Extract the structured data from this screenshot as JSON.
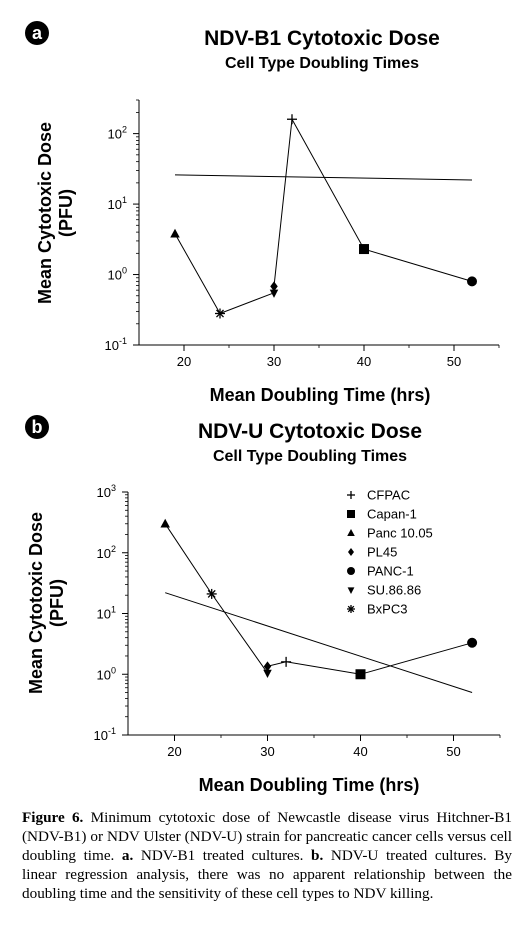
{
  "chart_data": [
    {
      "panel_label": "a",
      "type": "scatter",
      "title": "NDV-B1 Cytotoxic Dose",
      "subtitle": "Cell Type Doubling Times",
      "xlabel": "Mean Doubling Time (hrs)",
      "ylabel": "Mean Cytotoxic Dose",
      "ylabel_unit": "(PFU)",
      "xlim": [
        15,
        55
      ],
      "x_ticks": [
        20,
        30,
        40,
        50
      ],
      "y_scale": "log",
      "ylim": [
        0.1,
        300
      ],
      "y_ticks": [
        {
          "base": "10",
          "exp": "-1",
          "value": 0.1
        },
        {
          "base": "10",
          "exp": "0",
          "value": 1
        },
        {
          "base": "10",
          "exp": "1",
          "value": 10
        },
        {
          "base": "10",
          "exp": "2",
          "value": 100
        }
      ],
      "points": [
        {
          "marker": "triangle",
          "x": 19,
          "y": 3.8
        },
        {
          "marker": "asterisk",
          "x": 24,
          "y": 0.28
        },
        {
          "marker": "down-triangle",
          "x": 30,
          "y": 0.55
        },
        {
          "marker": "diamond",
          "x": 30,
          "y": 0.68
        },
        {
          "marker": "plus",
          "x": 32,
          "y": 160
        },
        {
          "marker": "square",
          "x": 40,
          "y": 2.3
        },
        {
          "marker": "circle",
          "x": 52,
          "y": 0.8
        }
      ],
      "connect_order": [
        0,
        1,
        2,
        3,
        4,
        5,
        6
      ],
      "regression": [
        [
          19,
          26
        ],
        [
          52,
          22
        ]
      ]
    },
    {
      "panel_label": "b",
      "type": "scatter",
      "title": "NDV-U Cytotoxic Dose",
      "subtitle": "Cell Type Doubling Times",
      "xlabel": "Mean Doubling Time (hrs)",
      "ylabel": "Mean Cytotoxic Dose",
      "ylabel_unit": "(PFU)",
      "xlim": [
        15,
        55
      ],
      "x_ticks": [
        20,
        30,
        40,
        50
      ],
      "y_scale": "log",
      "ylim": [
        0.1,
        1000
      ],
      "y_ticks": [
        {
          "base": "10",
          "exp": "-1",
          "value": 0.1
        },
        {
          "base": "10",
          "exp": "0",
          "value": 1
        },
        {
          "base": "10",
          "exp": "1",
          "value": 10
        },
        {
          "base": "10",
          "exp": "2",
          "value": 100
        },
        {
          "base": "10",
          "exp": "3",
          "value": 1000
        }
      ],
      "legend_position": "top-right",
      "legend": [
        {
          "marker": "plus",
          "label": "CFPAC"
        },
        {
          "marker": "square",
          "label": "Capan-1"
        },
        {
          "marker": "triangle",
          "label": "Panc 10.05"
        },
        {
          "marker": "diamond",
          "label": "PL45"
        },
        {
          "marker": "circle",
          "label": "PANC-1"
        },
        {
          "marker": "down-triangle",
          "label": "SU.86.86"
        },
        {
          "marker": "asterisk",
          "label": "BxPC3"
        }
      ],
      "points": [
        {
          "marker": "triangle",
          "x": 19,
          "y": 300
        },
        {
          "marker": "asterisk",
          "x": 24,
          "y": 21
        },
        {
          "marker": "down-triangle",
          "x": 30,
          "y": 1.05
        },
        {
          "marker": "diamond",
          "x": 30,
          "y": 1.35
        },
        {
          "marker": "plus",
          "x": 32,
          "y": 1.6
        },
        {
          "marker": "square",
          "x": 40,
          "y": 1.0
        },
        {
          "marker": "circle",
          "x": 52,
          "y": 3.3
        }
      ],
      "connect_order": [
        0,
        1,
        2,
        3,
        4,
        5,
        6
      ],
      "regression": [
        [
          19,
          22
        ],
        [
          52,
          0.5
        ]
      ]
    }
  ],
  "caption": {
    "label": "Figure 6.",
    "text": "Minimum cytotoxic dose of Newcastle disease virus Hitchner-B1 (NDV-B1) or NDV Ulster (NDV-U) strain for pancreatic cancer cells versus cell doubling time.",
    "a_label": "a.",
    "a_text": "NDV-B1 treated cultures.",
    "b_label": "b.",
    "b_text": "NDV-U treated cultures. By linear regression analysis, there was no apparent relationship between the doubling time and the sensitivity of these cell types to NDV killing."
  }
}
